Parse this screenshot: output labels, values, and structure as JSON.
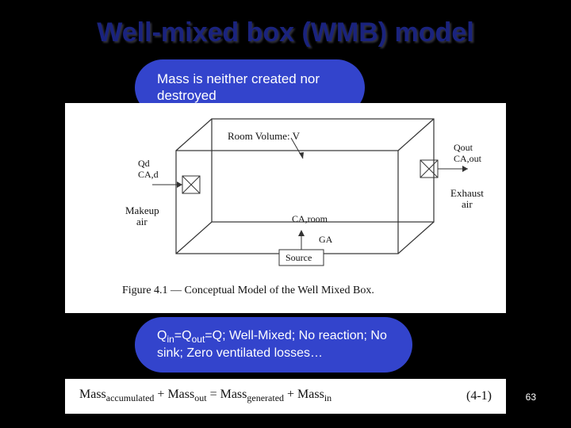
{
  "title": "Well-mixed box (WMB)  model",
  "bubble_top": "Mass is neither created nor destroyed",
  "bubble_bottom_html": "Q<sub>in</sub>=Q<sub>out</sub>=Q;  Well-Mixed; No reaction; No sink; Zero ventilated losses…",
  "slide_number": "63",
  "figure": {
    "caption": "Figure 4.1 — Conceptual Model of the Well Mixed Box.",
    "labels": {
      "room_volume": "Room Volume: V",
      "makeup_air": "Makeup air",
      "exhaust_air": "Exhaust air",
      "qd": "Qd",
      "cad": "CA,d",
      "qout": "Qout",
      "ca_out": "CA,out",
      "ca_room": "CA,room",
      "ga": "GA",
      "source": "Source"
    },
    "colors": {
      "panel_bg": "#ffffff",
      "line": "#333333"
    }
  },
  "equation": {
    "lhs_html": "Mass<sub>accumulated</sub> + Mass<sub>out</sub> = Mass<sub>generated</sub> + Mass<sub>in</sub>",
    "eq_num": "(4-1)"
  }
}
